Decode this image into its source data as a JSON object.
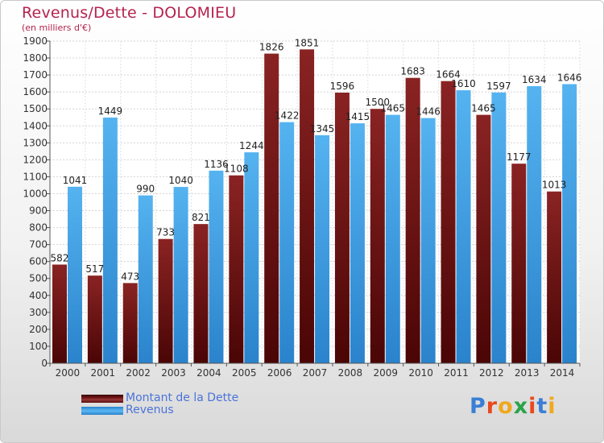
{
  "header": {
    "title": "Revenus/Dette - DOLOMIEU",
    "subtitle": "(en milliers d'€)"
  },
  "legend": {
    "items": [
      {
        "label": "Montant de la Dette",
        "color": "#6e0f0f"
      },
      {
        "label": "Revenus",
        "color": "#3d9de3"
      }
    ]
  },
  "logo": {
    "text": "Proxiti",
    "colors": [
      "#3a7fd5",
      "#e8491d",
      "#f0a81c",
      "#2aa34a",
      "#e8491d",
      "#3a7fd5",
      "#f0a81c"
    ]
  },
  "chart_data": {
    "type": "bar",
    "title": "Revenus/Dette - DOLOMIEU",
    "ylabel": "(en milliers d'€)",
    "ylim": [
      0,
      1900
    ],
    "yticks": [
      0,
      100,
      200,
      300,
      400,
      500,
      600,
      700,
      800,
      900,
      1000,
      1100,
      1200,
      1300,
      1400,
      1500,
      1600,
      1700,
      1800,
      1900
    ],
    "grid": true,
    "legend_position": "bottom-left",
    "categories": [
      "2000",
      "2001",
      "2002",
      "2003",
      "2004",
      "2005",
      "2006",
      "2007",
      "2008",
      "2009",
      "2010",
      "2011",
      "2012",
      "2013",
      "2014"
    ],
    "series": [
      {
        "name": "Montant de la Dette",
        "color": "#6e0f0f",
        "values": [
          582,
          517,
          473,
          733,
          821,
          1108,
          1826,
          1851,
          1596,
          1500,
          1683,
          1664,
          1465,
          1177,
          1013
        ],
        "labels": [
          "582",
          "517",
          "473",
          "733",
          "821",
          "1108",
          "1826",
          "1851",
          "1596",
          "1500",
          "1683",
          "1664",
          "1465",
          "1177",
          "1013"
        ]
      },
      {
        "name": "Revenus",
        "color": "#3d9de3",
        "values": [
          1041,
          1449,
          990,
          1040,
          1136,
          1244,
          1422,
          1345,
          1415,
          1465,
          1446,
          1610,
          1597,
          1634,
          1646
        ],
        "labels": [
          "1041",
          "1449",
          "990",
          "1040",
          "1136",
          "1244",
          "1422",
          "1345",
          "1415",
          "1465",
          "1446",
          "1610",
          "1597",
          "1634",
          "1646"
        ]
      }
    ]
  }
}
